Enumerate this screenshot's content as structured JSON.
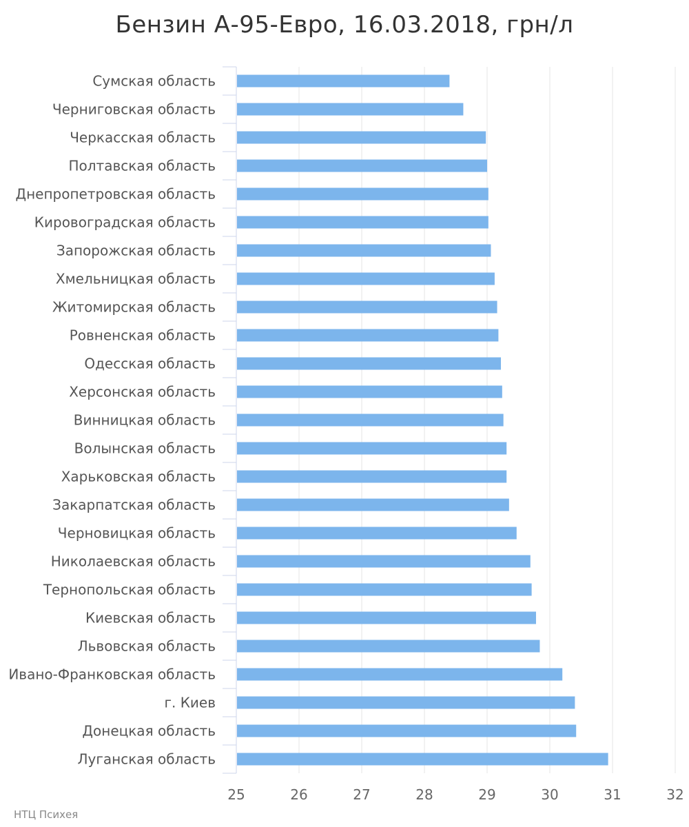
{
  "title": "Бензин А-95-Евро, 16.03.2018, грн/л",
  "credit": "НТЦ Психея",
  "colors": {
    "bar": "#7cb5ec",
    "grid": "#e6e6e6",
    "axis": "#ccd6eb",
    "label": "#555555",
    "tick_label": "#666666"
  },
  "chart_data": {
    "type": "bar",
    "orientation": "horizontal",
    "title": "Бензин А-95-Евро, 16.03.2018, грн/л",
    "xlim": [
      25,
      32
    ],
    "xticks": [
      25,
      26,
      27,
      28,
      29,
      30,
      31,
      32
    ],
    "grid": true,
    "categories": [
      "Сумская область",
      "Черниговская область",
      "Черкасская область",
      "Полтавская область",
      "Днепропетровская область",
      "Кировоградская область",
      "Запорожская область",
      "Хмельницкая область",
      "Житомирская область",
      "Ровненская область",
      "Одесская область",
      "Херсонская область",
      "Винницкая область",
      "Волынская область",
      "Харьковская область",
      "Закарпатская область",
      "Черновицкая область",
      "Николаевская область",
      "Тернопольская область",
      "Киевская область",
      "Львовская область",
      "Ивано-Франковская область",
      "г. Киев",
      "Донецкая область",
      "Луганская область"
    ],
    "values": [
      28.4,
      28.62,
      28.98,
      29.0,
      29.02,
      29.02,
      29.06,
      29.12,
      29.16,
      29.18,
      29.22,
      29.24,
      29.26,
      29.31,
      29.31,
      29.35,
      29.47,
      29.69,
      29.71,
      29.78,
      29.84,
      30.2,
      30.4,
      30.42,
      30.93
    ]
  }
}
